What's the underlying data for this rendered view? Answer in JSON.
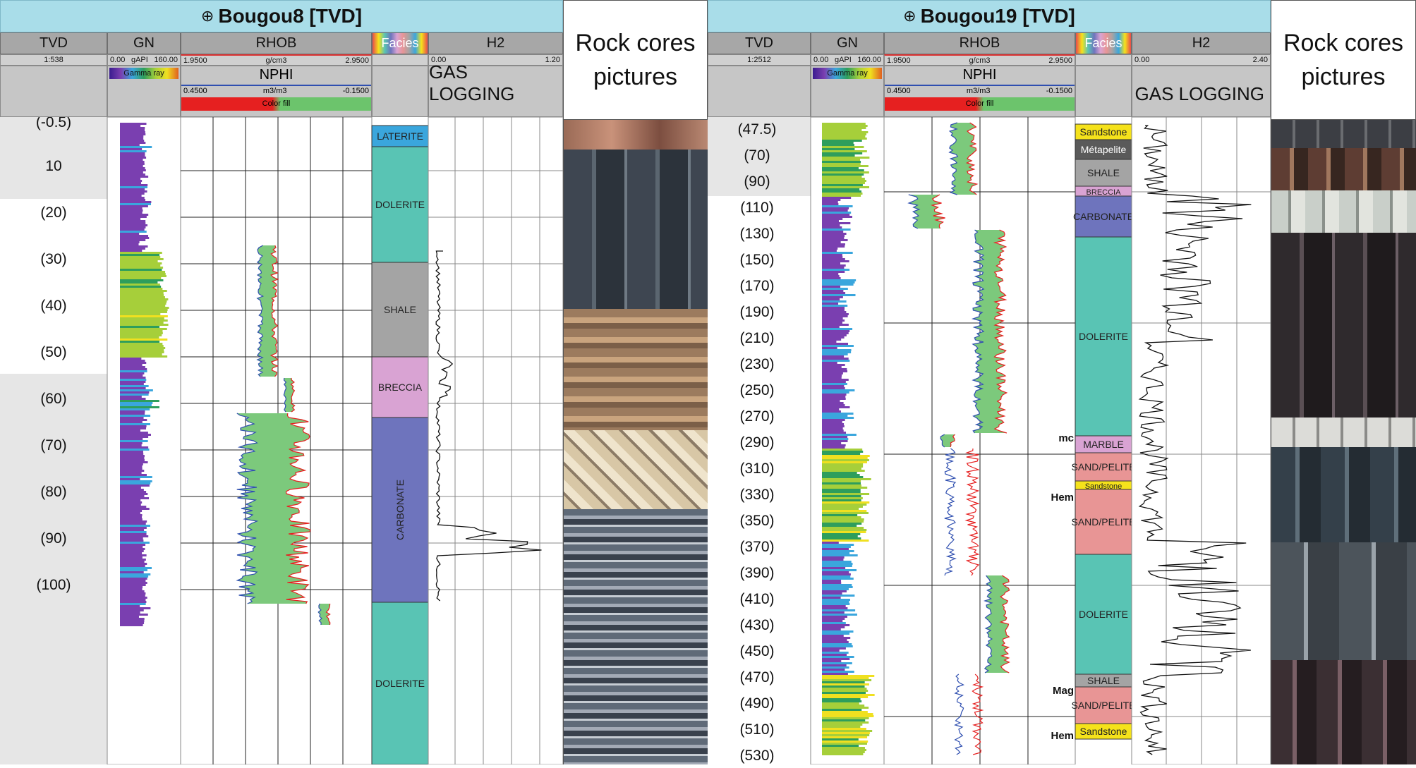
{
  "wells": [
    {
      "title": "Bougou8 [TVD]",
      "headers": {
        "tvd": "TVD",
        "gn": "GN",
        "rhob": "RHOB",
        "facies": "Facies",
        "h2": "H2"
      },
      "scales": {
        "tvd": "1:538",
        "gn_min": "0.00",
        "gn_unit": "gAPI",
        "gn_max": "160.00",
        "rhob_min": "1.9500",
        "rhob_unit": "g/cm3",
        "rhob_max": "2.9500",
        "nphi_label": "NPHI",
        "nphi_min": "0.4500",
        "nphi_unit": "m3/m3",
        "nphi_max": "-0.1500",
        "h2_min": "0.00",
        "h2_max": "1.20"
      },
      "gamma_ray_label": "Gamma ray",
      "color_fill_label": "Color fill",
      "gas_logging": "GAS LOGGING",
      "depths": [
        "(-0.5)",
        "10",
        "(20)",
        "(30)",
        "(40)",
        "(50)",
        "(60)",
        "(70)",
        "(80)",
        "(90)",
        "(100)"
      ],
      "facies": [
        {
          "label": "LATERITE",
          "color": "#3aa6dd"
        },
        {
          "label": "DOLERITE",
          "color": "#59c4b4"
        },
        {
          "label": "SHALE",
          "color": "#a4a4a4"
        },
        {
          "label": "BRECCIA",
          "color": "#d9a3d3"
        },
        {
          "label": "CARBONATE",
          "color": "#6e74bd"
        },
        {
          "label": "DOLERITE",
          "color": "#59c4b4"
        }
      ],
      "rock_cores_title": "Rock cores pictures"
    },
    {
      "title": "Bougou19 [TVD]",
      "headers": {
        "tvd": "TVD",
        "gn": "GN",
        "rhob": "RHOB",
        "facies": "Facies",
        "h2": "H2"
      },
      "scales": {
        "tvd": "1:2512",
        "gn_min": "0.00",
        "gn_unit": "gAPI",
        "gn_max": "160.00",
        "rhob_min": "1.9500",
        "rhob_unit": "g/cm3",
        "rhob_max": "2.9500",
        "nphi_label": "NPHI",
        "nphi_min": "0.4500",
        "nphi_unit": "m3/m3",
        "nphi_max": "-0.1500",
        "h2_min": "0.00",
        "h2_max": "2.40"
      },
      "gamma_ray_label": "Gamma ray",
      "color_fill_label": "Color fill",
      "gas_logging": "GAS LOGGING",
      "depths": [
        "(47.5)",
        "(70)",
        "(90)",
        "(110)",
        "(130)",
        "(150)",
        "(170)",
        "(190)",
        "(210)",
        "(230)",
        "(250)",
        "(270)",
        "(290)",
        "(310)",
        "(330)",
        "(350)",
        "(370)",
        "(390)",
        "(410)",
        "(430)",
        "(450)",
        "(470)",
        "(490)",
        "(510)",
        "(530)"
      ],
      "facies": [
        {
          "label": "Sandstone",
          "color": "#f5e21b"
        },
        {
          "label": "Métapelite",
          "color": "#5a5a5a"
        },
        {
          "label": "SHALE",
          "color": "#a4a4a4"
        },
        {
          "label": "BRECCIA",
          "color": "#d9a3d3"
        },
        {
          "label": "CARBONATE",
          "color": "#6e74bd"
        },
        {
          "label": "DOLERITE",
          "color": "#59c4b4"
        },
        {
          "label": "MARBLE",
          "color": "#d9a3d3"
        },
        {
          "label": "SAND/PELITE",
          "color": "#e89595"
        },
        {
          "label": "Sandstone",
          "color": "#f5e21b"
        },
        {
          "label": "SAND/PELITE",
          "color": "#e89595"
        },
        {
          "label": "DOLERITE",
          "color": "#59c4b4"
        },
        {
          "label": "SHALE",
          "color": "#a4a4a4"
        },
        {
          "label": "SAND/PELITE",
          "color": "#e89595"
        },
        {
          "label": "Sandstone",
          "color": "#f5e21b"
        }
      ],
      "side_labels": [
        "mc",
        "Hem",
        "Mag",
        "Hem"
      ],
      "rock_cores_title": "Rock cores pictures"
    }
  ]
}
